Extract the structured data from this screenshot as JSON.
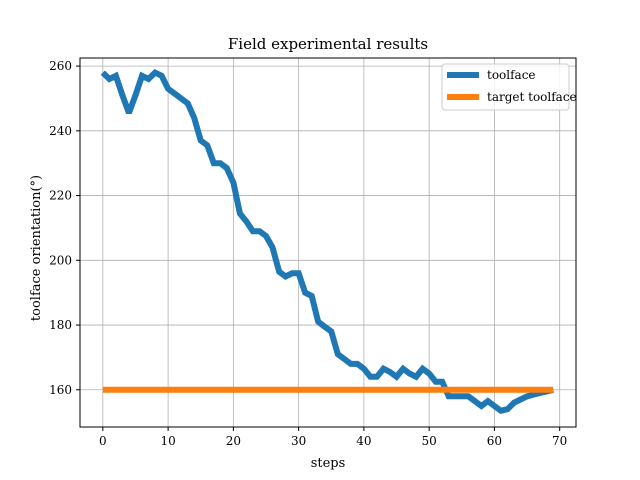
{
  "chart_data": {
    "type": "line",
    "title": "Field experimental results",
    "xlabel": "steps",
    "ylabel": "toolface orientation(°)",
    "xlim": [
      -3.5,
      72.5
    ],
    "ylim": [
      148.5,
      262.5
    ],
    "xticks": [
      0,
      10,
      20,
      30,
      40,
      50,
      60,
      70
    ],
    "yticks": [
      160,
      180,
      200,
      220,
      240,
      260
    ],
    "grid": true,
    "legend_position": "top-right",
    "series": [
      {
        "name": "toolface",
        "color": "#1f77b4",
        "x": [
          0,
          1,
          2,
          3,
          4,
          5,
          6,
          7,
          8,
          9,
          10,
          11,
          12,
          13,
          14,
          15,
          16,
          17,
          18,
          19,
          20,
          21,
          22,
          23,
          24,
          25,
          26,
          27,
          28,
          29,
          30,
          31,
          32,
          33,
          34,
          35,
          36,
          37,
          38,
          39,
          40,
          41,
          42,
          43,
          44,
          45,
          46,
          47,
          48,
          49,
          50,
          51,
          52,
          53,
          54,
          55,
          56,
          57,
          58,
          59,
          60,
          61,
          62,
          63,
          64,
          65,
          66,
          67,
          68,
          69
        ],
        "y": [
          258,
          256,
          257,
          251,
          245.5,
          251,
          257,
          256,
          258,
          257,
          253,
          251.5,
          250,
          248.5,
          244,
          237,
          235.5,
          230,
          230,
          228.5,
          224,
          214.5,
          212,
          209,
          209,
          207.5,
          204,
          196.5,
          195,
          196,
          196,
          190,
          189,
          181,
          179.5,
          178,
          171,
          169.5,
          168,
          168,
          166.5,
          164,
          164,
          166.5,
          165.5,
          164,
          166.5,
          165,
          164,
          166.5,
          165,
          162.5,
          162.5,
          158,
          158,
          158,
          158,
          156.5,
          155,
          156.5,
          155,
          153.5,
          154,
          156,
          157,
          158,
          158.5,
          159,
          159.5,
          160
        ]
      },
      {
        "name": "target toolface",
        "color": "#ff7f0e",
        "x": [
          0,
          69
        ],
        "y": [
          160,
          160
        ]
      }
    ]
  }
}
